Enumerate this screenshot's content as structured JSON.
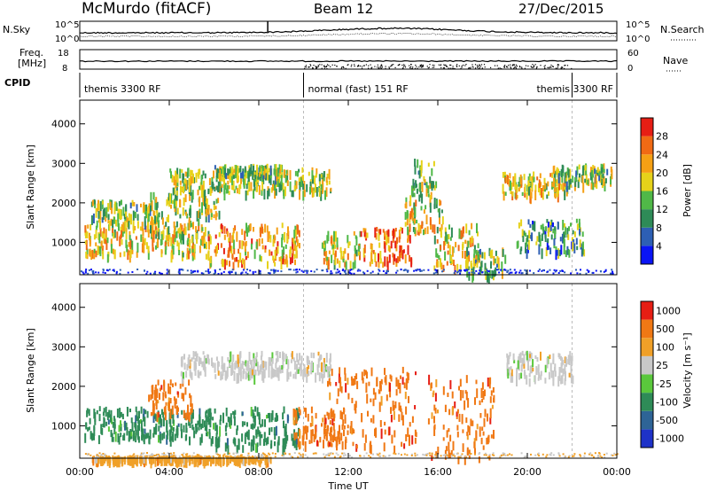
{
  "header": {
    "station": "McMurdo (fitACF)",
    "beam": "Beam 12",
    "date": "27/Dec/2015"
  },
  "strips": {
    "nsky_label": "N.Sky",
    "nsky_ticks": [
      "10^5",
      "10^0"
    ],
    "nsearch_label": "N.Search",
    "nsearch_ticks": [
      "10^5",
      "10^0"
    ],
    "freq_label": "Freq.",
    "freq_unit": "[MHz]",
    "freq_ticks": [
      "18",
      "8"
    ],
    "nave_label": "Nave",
    "nave_ticks": [
      "60",
      "0"
    ],
    "cpid_label": "CPID",
    "cpid_segments": [
      {
        "name": "themis 3300 RF",
        "start": 0,
        "end": 10
      },
      {
        "name": "normal (fast) 151 RF",
        "start": 10,
        "end": 22
      },
      {
        "name": "themis 3300 RF",
        "start": 22,
        "end": 24
      }
    ]
  },
  "time_axis": {
    "label": "Time UT",
    "ticks": [
      "00:00",
      "04:00",
      "08:00",
      "12:00",
      "16:00",
      "20:00",
      "00:00"
    ]
  },
  "chart_data": [
    {
      "type": "heatmap",
      "title": "Power",
      "ylabel": "Slant Range [km]",
      "xlabel": "Time UT",
      "ylim": [
        180,
        4600
      ],
      "xlim": [
        0,
        24
      ],
      "yticks": [
        "1000",
        "2000",
        "3000",
        "4000"
      ],
      "colorbar_label": "Power [dB]",
      "colorbar_ticks": [
        "4",
        "8",
        "12",
        "16",
        "20",
        "24",
        "28"
      ],
      "colors": [
        "#0a14f5",
        "#2d5fb4",
        "#2e8b57",
        "#50b848",
        "#e6d21a",
        "#f5a014",
        "#f06a14",
        "#e61e14"
      ],
      "regions": [
        {
          "t0": 0.2,
          "t1": 5.8,
          "r0": 700,
          "r1": 1500,
          "level": 0.62
        },
        {
          "t0": 0.5,
          "t1": 3.5,
          "r0": 1500,
          "r1": 2100,
          "level": 0.45
        },
        {
          "t0": 3.0,
          "t1": 5.5,
          "r0": 1200,
          "r1": 2300,
          "level": 0.5
        },
        {
          "t0": 5.5,
          "t1": 6.2,
          "r0": 1700,
          "r1": 2200,
          "level": 0.48
        },
        {
          "t0": 5.6,
          "t1": 9.8,
          "r0": 500,
          "r1": 1500,
          "level": 0.72
        },
        {
          "t0": 4.0,
          "t1": 11.2,
          "r0": 2300,
          "r1": 2900,
          "level": 0.5
        },
        {
          "t0": 6.0,
          "t1": 9.0,
          "r0": 2700,
          "r1": 3000,
          "level": 0.45
        },
        {
          "t0": 10.8,
          "t1": 12.5,
          "r0": 500,
          "r1": 1300,
          "level": 0.62
        },
        {
          "t0": 12.5,
          "t1": 14.8,
          "r0": 500,
          "r1": 1400,
          "level": 0.82
        },
        {
          "t0": 14.5,
          "t1": 16.2,
          "r0": 1300,
          "r1": 2200,
          "level": 0.55
        },
        {
          "t0": 15.8,
          "t1": 17.8,
          "r0": 400,
          "r1": 1500,
          "level": 0.6
        },
        {
          "t0": 14.8,
          "t1": 16.0,
          "r0": 2200,
          "r1": 3200,
          "level": 0.45
        },
        {
          "t0": 17.2,
          "t1": 19.0,
          "r0": 200,
          "r1": 900,
          "level": 0.45
        },
        {
          "t0": 18.8,
          "t1": 21.8,
          "r0": 2200,
          "r1": 2800,
          "level": 0.62
        },
        {
          "t0": 21.0,
          "t1": 23.8,
          "r0": 2500,
          "r1": 3000,
          "level": 0.45
        },
        {
          "t0": 19.5,
          "t1": 22.5,
          "r0": 800,
          "r1": 1600,
          "level": 0.3
        }
      ]
    },
    {
      "type": "heatmap",
      "title": "Velocity",
      "ylabel": "Slant Range [km]",
      "xlabel": "Time UT",
      "ylim": [
        180,
        4600
      ],
      "xlim": [
        0,
        24
      ],
      "yticks": [
        "1000",
        "2000",
        "3000",
        "4000"
      ],
      "colorbar_label": "Velocity [m s⁻¹]",
      "colorbar_ticks": [
        "1000",
        "500",
        "100",
        "25",
        "-25",
        "-100",
        "-500",
        "-1000"
      ],
      "colors": [
        "#1e32c8",
        "#2e6496",
        "#2e8b57",
        "#5ac83c",
        "#c8c8c8",
        "#f0a028",
        "#f07814",
        "#e61e14"
      ],
      "regions": [
        {
          "t0": 0.2,
          "t1": 5.8,
          "r0": 700,
          "r1": 1500,
          "cls": 2
        },
        {
          "t0": 3.0,
          "t1": 5.0,
          "r0": 1300,
          "r1": 2200,
          "cls": 6
        },
        {
          "t0": 5.6,
          "t1": 9.8,
          "r0": 500,
          "r1": 1500,
          "cls": 2
        },
        {
          "t0": 9.5,
          "t1": 12.0,
          "r0": 600,
          "r1": 1500,
          "cls": 6
        },
        {
          "t0": 4.5,
          "t1": 11.2,
          "r0": 2300,
          "r1": 2900,
          "cls": 4
        },
        {
          "t0": 11.0,
          "t1": 15.0,
          "r0": 500,
          "r1": 2500,
          "cls": 6
        },
        {
          "t0": 15.5,
          "t1": 18.5,
          "r0": 200,
          "r1": 2300,
          "cls": 6
        },
        {
          "t0": 19.0,
          "t1": 22.0,
          "r0": 2200,
          "r1": 2900,
          "cls": 4
        },
        {
          "t0": 0.5,
          "t1": 8.5,
          "r0": 180,
          "r1": 260,
          "cls": 5
        }
      ]
    }
  ]
}
